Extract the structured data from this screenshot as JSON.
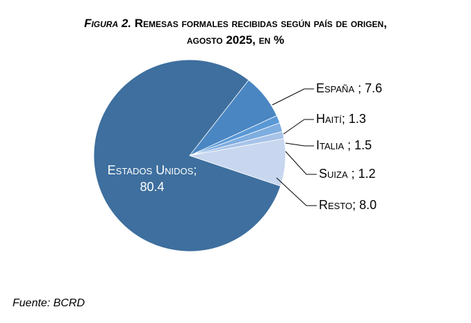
{
  "title": {
    "figure_label": "Figura 2.",
    "line1": "Remesas formales recibidas según país de origen,",
    "line2": "agosto 2025, en %"
  },
  "source": "Fuente: BCRD",
  "colors": {
    "Estados Unidos": "#3E6F9E",
    "España": "#4A86C2",
    "Haití": "#5A98D6",
    "Italia": "#7EADE0",
    "Suiza": "#A7C3E8",
    "Resto": "#C8D7EF"
  },
  "chart_data": {
    "type": "pie",
    "title": "Figura 2. Remesas formales recibidas según país de origen, agosto 2025, en %",
    "slices": [
      {
        "label": "Estados Unidos",
        "value": 80.4,
        "text": "Estados Unidos;",
        "value_text": "80.4"
      },
      {
        "label": "España",
        "value": 7.6,
        "text": "España ; 7.6"
      },
      {
        "label": "Haití",
        "value": 1.3,
        "text": "Haití; 1.3"
      },
      {
        "label": "Italia",
        "value": 1.5,
        "text": "Italia ; 1.5"
      },
      {
        "label": "Suiza",
        "value": 1.2,
        "text": "Suiza ; 1.2"
      },
      {
        "label": "Resto",
        "value": 8.0,
        "text": "Resto; 8.0"
      }
    ]
  }
}
